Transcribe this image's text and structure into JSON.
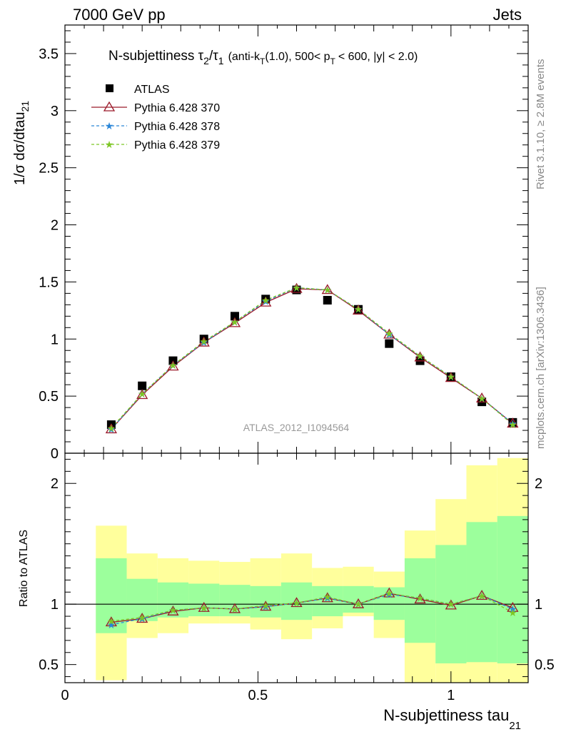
{
  "header": {
    "energy": "7000 GeV pp",
    "process": "Jets",
    "analysis_id": "ATLAS_2012_I1094564",
    "side_rivet": "Rivet 3.1.10, ≥ 2.8M events",
    "side_mcplots": "mcplots.cern.ch [arXiv:1306.3436]"
  },
  "colors": {
    "atlas": "#000000",
    "py370": "#9b1a2a",
    "py378": "#2a86d8",
    "py379": "#7ec626",
    "band_inner": "#9cff9c",
    "band_outer": "#ffff9c",
    "analysis_text": "#999999"
  },
  "chart_data": [
    {
      "type": "scatter",
      "panel": "main",
      "title_main": "N-subjettiness τ",
      "title_sub1": "2",
      "title_slash": "/τ",
      "title_sub2": "1",
      "title_cut_a": "(anti-k",
      "title_cut_sub": "T",
      "title_cut_b": "(1.0), 500< p",
      "title_cut_sub2": "T",
      "title_cut_c": "< 600, |y| < 2.0)",
      "ylabel": "1/σ dσ/dtau",
      "ylabel_sub": "21",
      "xlim": [
        0,
        1.2
      ],
      "ylim": [
        0,
        3.75
      ],
      "yticks": [
        0,
        0.5,
        1,
        1.5,
        2,
        2.5,
        3,
        3.5
      ],
      "ytick_labels": [
        "0",
        "0.5",
        "1",
        "1.5",
        "2",
        "2.5",
        "3",
        "3.5"
      ],
      "x": [
        0.12,
        0.2,
        0.28,
        0.36,
        0.44,
        0.52,
        0.6,
        0.68,
        0.76,
        0.84,
        0.92,
        1.0,
        1.08,
        1.16
      ],
      "series": [
        {
          "name": "ATLAS",
          "marker": "square",
          "values": [
            0.25,
            0.59,
            0.81,
            1.0,
            1.2,
            1.35,
            1.43,
            1.34,
            1.26,
            0.96,
            0.81,
            0.67,
            0.45,
            0.27
          ]
        },
        {
          "name": "Pythia 6.428 370",
          "marker": "triangle",
          "values": [
            0.21,
            0.51,
            0.76,
            0.97,
            1.14,
            1.32,
            1.44,
            1.43,
            1.25,
            1.04,
            0.84,
            0.66,
            0.48,
            0.26
          ]
        },
        {
          "name": "Pythia 6.428 378",
          "marker": "star",
          "values": [
            0.21,
            0.52,
            0.77,
            0.97,
            1.15,
            1.33,
            1.45,
            1.43,
            1.26,
            1.04,
            0.85,
            0.67,
            0.48,
            0.26
          ]
        },
        {
          "name": "Pythia 6.428 379",
          "marker": "star",
          "values": [
            0.22,
            0.52,
            0.77,
            0.98,
            1.15,
            1.34,
            1.45,
            1.43,
            1.26,
            1.05,
            0.85,
            0.67,
            0.48,
            0.25
          ]
        }
      ]
    },
    {
      "type": "line",
      "panel": "ratio",
      "ylabel": "Ratio to ATLAS",
      "xlabel": "N-subjettiness tau",
      "xlabel_sub": "21",
      "xlim": [
        0,
        1.2
      ],
      "ylim": [
        0.35,
        2.25
      ],
      "yticks": [
        0.5,
        1,
        2
      ],
      "ytick_labels": [
        "0.5",
        "1",
        "2"
      ],
      "xticks": [
        0,
        0.5,
        1
      ],
      "xtick_labels": [
        "0",
        "0.5",
        "1"
      ],
      "x": [
        0.12,
        0.2,
        0.28,
        0.36,
        0.44,
        0.52,
        0.6,
        0.68,
        0.76,
        0.84,
        0.92,
        1.0,
        1.08,
        1.16
      ],
      "bin_edges": [
        0.08,
        0.16,
        0.24,
        0.32,
        0.4,
        0.48,
        0.56,
        0.64,
        0.72,
        0.8,
        0.88,
        0.96,
        1.04,
        1.12,
        1.2
      ],
      "band_outer": [
        [
          0.37,
          1.65
        ],
        [
          0.72,
          1.42
        ],
        [
          0.76,
          1.38
        ],
        [
          0.84,
          1.36
        ],
        [
          0.84,
          1.35
        ],
        [
          0.79,
          1.38
        ],
        [
          0.71,
          1.42
        ],
        [
          0.8,
          1.3
        ],
        [
          0.9,
          1.31
        ],
        [
          0.72,
          1.27
        ],
        [
          0.29,
          1.61
        ],
        [
          0.29,
          1.87
        ],
        [
          0.29,
          2.15
        ],
        [
          0.29,
          2.21
        ]
      ],
      "band_inner": [
        [
          0.76,
          1.38
        ],
        [
          0.86,
          1.21
        ],
        [
          0.89,
          1.18
        ],
        [
          0.9,
          1.17
        ],
        [
          0.9,
          1.16
        ],
        [
          0.89,
          1.15
        ],
        [
          0.87,
          1.18
        ],
        [
          0.9,
          1.15
        ],
        [
          0.93,
          1.15
        ],
        [
          0.87,
          1.14
        ],
        [
          0.68,
          1.38
        ],
        [
          0.51,
          1.49
        ],
        [
          0.52,
          1.68
        ],
        [
          0.51,
          1.73
        ]
      ],
      "series": [
        {
          "name": "Pythia 6.428 370",
          "marker": "triangle",
          "values": [
            0.85,
            0.88,
            0.94,
            0.97,
            0.96,
            0.98,
            1.01,
            1.05,
            1.0,
            1.09,
            1.04,
            0.99,
            1.07,
            0.97
          ]
        },
        {
          "name": "Pythia 6.428 378",
          "marker": "star",
          "values": [
            0.83,
            0.88,
            0.95,
            0.97,
            0.96,
            0.98,
            1.01,
            1.05,
            1.0,
            1.08,
            1.05,
            1.0,
            1.07,
            0.96
          ]
        },
        {
          "name": "Pythia 6.428 379",
          "marker": "star",
          "values": [
            0.86,
            0.89,
            0.95,
            0.97,
            0.96,
            0.99,
            1.01,
            1.06,
            1.0,
            1.09,
            1.05,
            1.0,
            1.07,
            0.93
          ]
        }
      ]
    }
  ]
}
